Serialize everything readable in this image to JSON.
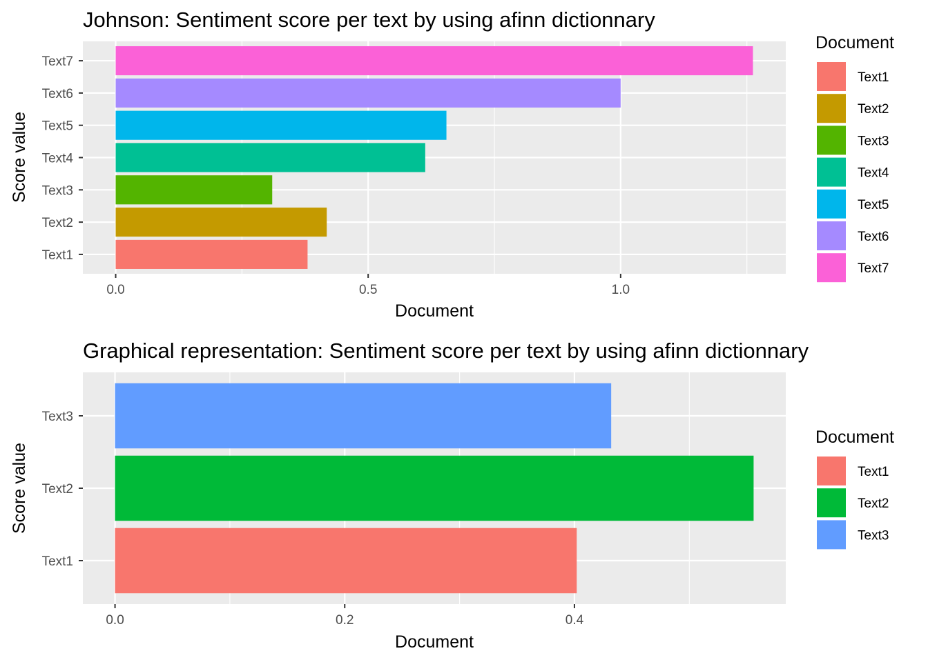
{
  "chart_data": [
    {
      "type": "bar",
      "orientation": "horizontal",
      "title": "Johnson: Sentiment score per text by using afinn dictionnary",
      "xlabel": "Document",
      "ylabel": "Score value",
      "categories": [
        "Text1",
        "Text2",
        "Text3",
        "Text4",
        "Text5",
        "Text6",
        "Text7"
      ],
      "values": [
        0.38,
        0.418,
        0.31,
        0.613,
        0.655,
        1.0,
        1.262
      ],
      "colors": [
        "#F8766D",
        "#C49A00",
        "#53B400",
        "#00C094",
        "#00B6EB",
        "#A58AFF",
        "#FB61D7"
      ],
      "xlim": [
        -0.065,
        1.327
      ],
      "xticks": [
        0.0,
        0.5,
        1.0
      ],
      "xtick_labels": [
        "0.0",
        "0.5",
        "1.0"
      ],
      "xminor": [
        0.25,
        0.75,
        1.25
      ],
      "grid": true,
      "legend": {
        "title": "Document",
        "position": "right",
        "items": [
          "Text1",
          "Text2",
          "Text3",
          "Text4",
          "Text5",
          "Text6",
          "Text7"
        ]
      }
    },
    {
      "type": "bar",
      "orientation": "horizontal",
      "title": "Graphical representation: Sentiment score per text by using afinn dictionnary",
      "xlabel": "Document",
      "ylabel": "Score value",
      "categories": [
        "Text1",
        "Text2",
        "Text3"
      ],
      "values": [
        0.402,
        0.556,
        0.432
      ],
      "colors": [
        "#F8766D",
        "#00BA38",
        "#619CFF"
      ],
      "xlim": [
        -0.028,
        0.584
      ],
      "xticks": [
        0.0,
        0.2,
        0.4
      ],
      "xtick_labels": [
        "0.0",
        "0.2",
        "0.4"
      ],
      "xminor": [
        0.1,
        0.3,
        0.5
      ],
      "grid": true,
      "legend": {
        "title": "Document",
        "position": "right",
        "items": [
          "Text1",
          "Text2",
          "Text3"
        ]
      }
    }
  ]
}
